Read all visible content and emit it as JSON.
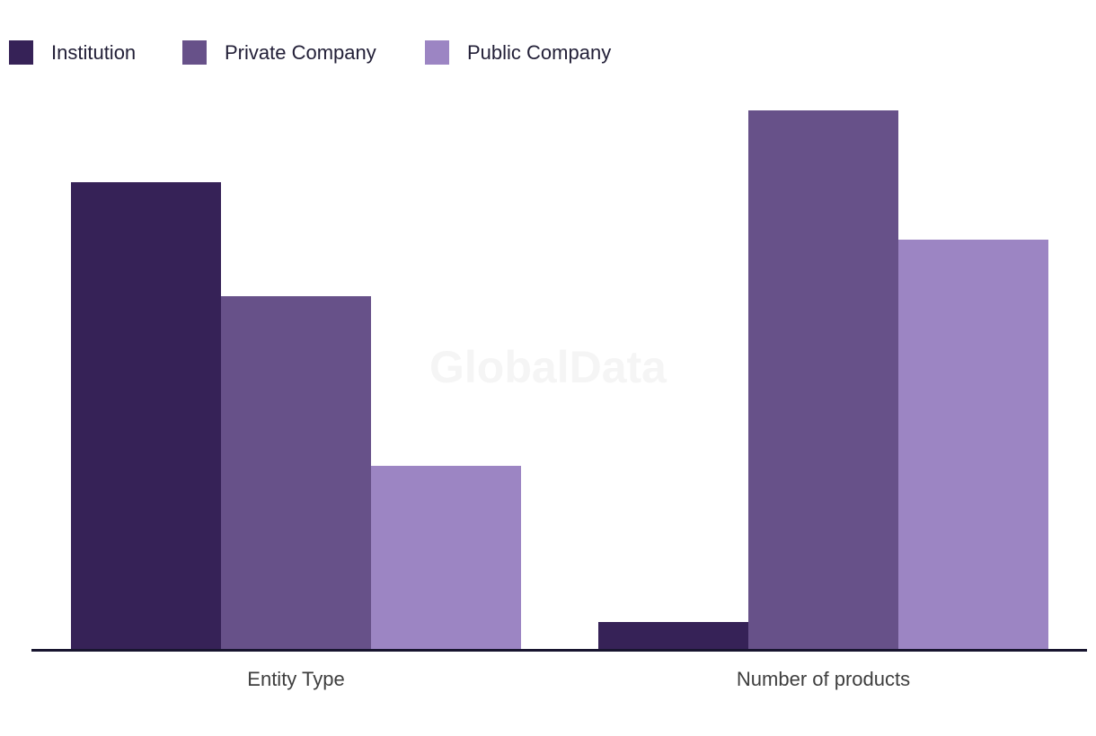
{
  "watermark": "GlobalData",
  "legend": {
    "items": [
      {
        "label": "Institution",
        "color": "#362257"
      },
      {
        "label": "Private Company",
        "color": "#675189"
      },
      {
        "label": "Public Company",
        "color": "#9C85C3"
      }
    ]
  },
  "chart_data": {
    "type": "bar",
    "title": "",
    "xlabel": "",
    "ylabel": "",
    "categories": [
      "Entity Type",
      "Number of products"
    ],
    "series": [
      {
        "name": "Institution",
        "color": "#362257",
        "values": [
          86.7,
          5.0
        ]
      },
      {
        "name": "Private Company",
        "color": "#675189",
        "values": [
          65.5,
          100.0
        ]
      },
      {
        "name": "Public Company",
        "color": "#9C85C3",
        "values": [
          34.0,
          76.0
        ]
      }
    ],
    "value_unit": "relative estimate (no y-axis ticks or value labels shown)",
    "ylim": [
      0,
      100
    ],
    "grid": false,
    "y_axis_shown": false,
    "legend_position": "top-left",
    "axis_line_color": "#18152F",
    "category_label_color": "#3e3e3e",
    "legend_text_color": "#232038",
    "watermark_color": "#f5f5f5",
    "background_color": "#ffffff"
  }
}
